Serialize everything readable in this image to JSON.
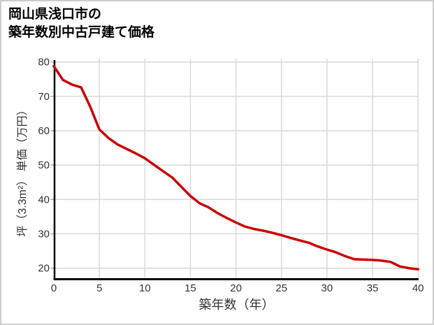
{
  "title": {
    "line1": "岡山県浅口市の",
    "line2": "築年数別中古戸建て価格"
  },
  "colors": {
    "line": "#cc0000",
    "grid": "#d9d9d9",
    "axis": "#000000",
    "tick_text": "#333333",
    "label_text": "#333333",
    "title_text": "#000000",
    "border": "#cccccc",
    "background": "#ffffff"
  },
  "chart_data": {
    "type": "line",
    "title": "岡山県浅口市の築年数別中古戸建て価格",
    "xlabel": "築年数（年）",
    "ylabel": "坪（3.3m²） 単価（万円）",
    "x": [
      0,
      1,
      2,
      3,
      4,
      5,
      6,
      7,
      8,
      9,
      10,
      11,
      12,
      13,
      14,
      15,
      16,
      17,
      18,
      19,
      20,
      21,
      22,
      23,
      24,
      25,
      26,
      27,
      28,
      29,
      30,
      31,
      32,
      33,
      34,
      35,
      36,
      37,
      38,
      39,
      40
    ],
    "values": [
      78.8,
      74.8,
      73.4,
      72.6,
      67.0,
      60.4,
      57.9,
      56.0,
      54.7,
      53.4,
      52.0,
      50.1,
      48.2,
      46.4,
      43.7,
      41.0,
      38.9,
      37.7,
      36.0,
      34.6,
      33.3,
      32.1,
      31.4,
      30.9,
      30.3,
      29.6,
      28.8,
      28.1,
      27.4,
      26.3,
      25.4,
      24.6,
      23.5,
      22.6,
      22.5,
      22.4,
      22.2,
      21.8,
      20.5,
      20.0,
      19.7
    ],
    "xticks": [
      0,
      5,
      10,
      15,
      20,
      25,
      30,
      35,
      40
    ],
    "yticks": [
      20,
      30,
      40,
      50,
      60,
      70,
      80
    ],
    "xlim": [
      0,
      40
    ],
    "ylim": [
      20,
      80
    ],
    "grid": true,
    "legend": false
  }
}
